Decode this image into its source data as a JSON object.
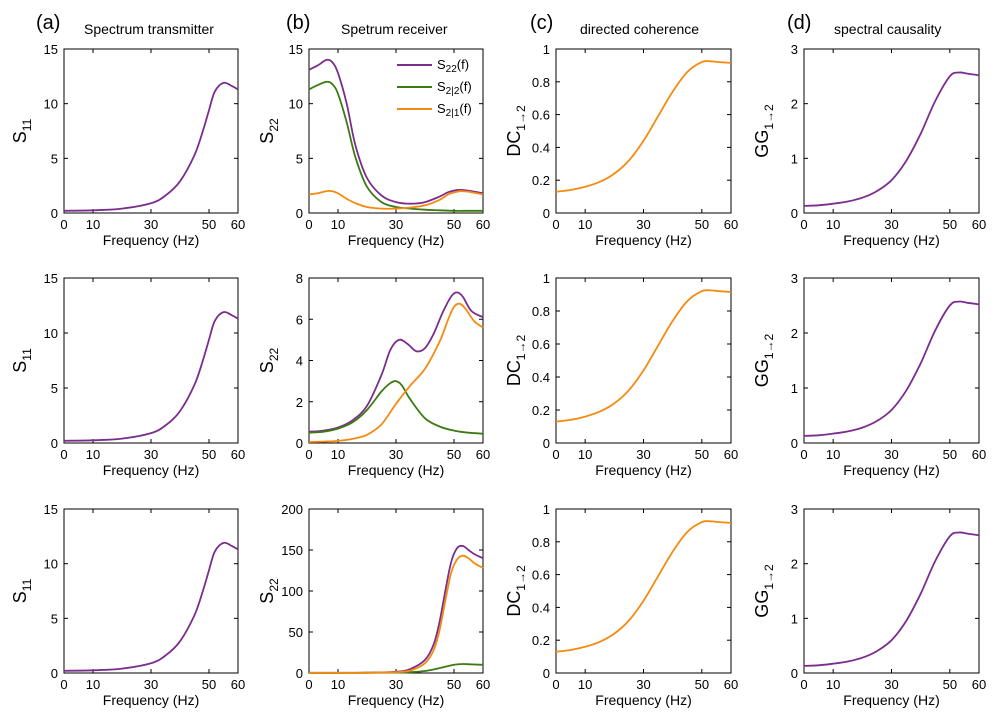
{
  "colors": {
    "purple": "#7B2D8E",
    "green": "#3D7A12",
    "orange": "#F58A0F"
  },
  "panel_letters": [
    "(a)",
    "(b)",
    "(c)",
    "(d)"
  ],
  "column_titles": [
    "Spectrum transmitter",
    "Spetrum receiver",
    "directed coherence",
    "spectral causality"
  ],
  "ylabels": {
    "a": {
      "main": "S",
      "sub": "11"
    },
    "b": {
      "main": "S",
      "sub": "22"
    },
    "c": {
      "main": "DC",
      "sub": "1→2"
    },
    "d": {
      "main": "GG",
      "sub": "1→2"
    }
  },
  "legend": [
    {
      "main": "S",
      "sub": "22",
      "tail": "(f)",
      "color": "purple"
    },
    {
      "main": "S",
      "sub": "2|2",
      "tail": "(f)",
      "color": "green"
    },
    {
      "main": "S",
      "sub": "2|1",
      "tail": "(f)",
      "color": "orange"
    }
  ],
  "chart_data": [
    {
      "id": "r1-a",
      "type": "line",
      "xlabel": "Frequency (Hz)",
      "xlim": [
        0,
        60
      ],
      "xticks": [
        0,
        10,
        30,
        50,
        60
      ],
      "ylim": [
        0,
        15
      ],
      "yticks": [
        0,
        5,
        10,
        15
      ],
      "series": [
        {
          "color": "purple",
          "x": [
            0,
            10,
            20,
            30,
            35,
            40,
            45,
            48,
            50,
            52,
            55,
            58,
            60
          ],
          "y": [
            0.2,
            0.25,
            0.4,
            0.9,
            1.6,
            2.9,
            5.3,
            7.6,
            9.4,
            11.1,
            11.9,
            11.6,
            11.3
          ]
        }
      ]
    },
    {
      "id": "r1-b",
      "type": "line",
      "xlabel": "Frequency (Hz)",
      "xlim": [
        0,
        60
      ],
      "xticks": [
        0,
        10,
        30,
        50,
        60
      ],
      "ylim": [
        0,
        15
      ],
      "yticks": [
        0,
        5,
        10,
        15
      ],
      "series": [
        {
          "color": "purple",
          "x": [
            0,
            3,
            6,
            8,
            10,
            13,
            16,
            20,
            25,
            30,
            35,
            40,
            45,
            48,
            51,
            53,
            56,
            60
          ],
          "y": [
            13.1,
            13.5,
            14.0,
            13.8,
            12.8,
            10.0,
            6.2,
            3.2,
            1.6,
            1.0,
            0.85,
            1.0,
            1.5,
            1.9,
            2.1,
            2.1,
            2.0,
            1.8
          ]
        },
        {
          "color": "green",
          "x": [
            0,
            3,
            6,
            8,
            10,
            13,
            16,
            20,
            25,
            30,
            35,
            40,
            45,
            50,
            55,
            60
          ],
          "y": [
            11.3,
            11.7,
            12.0,
            11.8,
            10.9,
            8.3,
            5.1,
            2.4,
            1.0,
            0.55,
            0.4,
            0.3,
            0.25,
            0.2,
            0.2,
            0.2
          ]
        },
        {
          "color": "orange",
          "x": [
            0,
            3,
            6,
            8,
            10,
            13,
            16,
            20,
            25,
            30,
            35,
            40,
            45,
            48,
            51,
            53,
            56,
            60
          ],
          "y": [
            1.7,
            1.8,
            2.0,
            2.0,
            1.8,
            1.3,
            0.9,
            0.55,
            0.4,
            0.4,
            0.5,
            0.7,
            1.2,
            1.7,
            1.95,
            2.0,
            1.9,
            1.7
          ]
        }
      ]
    },
    {
      "id": "r1-c",
      "type": "line",
      "xlabel": "Frequency (Hz)",
      "xlim": [
        0,
        60
      ],
      "xticks": [
        0,
        10,
        30,
        50,
        60
      ],
      "ylim": [
        0,
        1
      ],
      "yticks": [
        0,
        0.2,
        0.4,
        0.6,
        0.8,
        1
      ],
      "series": [
        {
          "color": "orange",
          "x": [
            0,
            5,
            10,
            15,
            20,
            25,
            30,
            35,
            40,
            45,
            50,
            53,
            56,
            60
          ],
          "y": [
            0.13,
            0.14,
            0.16,
            0.19,
            0.24,
            0.32,
            0.44,
            0.59,
            0.74,
            0.86,
            0.92,
            0.925,
            0.92,
            0.915
          ]
        }
      ]
    },
    {
      "id": "r1-d",
      "type": "line",
      "xlabel": "Frequency (Hz)",
      "xlim": [
        0,
        60
      ],
      "xticks": [
        0,
        10,
        30,
        50,
        60
      ],
      "ylim": [
        0,
        3
      ],
      "yticks": [
        0,
        1,
        2,
        3
      ],
      "series": [
        {
          "color": "purple",
          "x": [
            0,
            5,
            10,
            15,
            20,
            25,
            30,
            35,
            40,
            45,
            50,
            53,
            56,
            60
          ],
          "y": [
            0.13,
            0.14,
            0.17,
            0.21,
            0.28,
            0.4,
            0.6,
            0.95,
            1.45,
            2.05,
            2.5,
            2.57,
            2.55,
            2.52
          ]
        }
      ]
    },
    {
      "id": "r2-a",
      "type": "line",
      "xlabel": "Frequency (Hz)",
      "xlim": [
        0,
        60
      ],
      "xticks": [
        0,
        10,
        30,
        50,
        60
      ],
      "ylim": [
        0,
        15
      ],
      "yticks": [
        0,
        5,
        10,
        15
      ],
      "series": [
        {
          "color": "purple",
          "x": [
            0,
            10,
            20,
            30,
            35,
            40,
            45,
            48,
            50,
            52,
            55,
            58,
            60
          ],
          "y": [
            0.2,
            0.25,
            0.4,
            0.9,
            1.6,
            2.9,
            5.3,
            7.6,
            9.4,
            11.1,
            11.9,
            11.6,
            11.3
          ]
        }
      ]
    },
    {
      "id": "r2-b",
      "type": "line",
      "xlabel": "Frequency (Hz)",
      "xlim": [
        0,
        60
      ],
      "xticks": [
        0,
        10,
        30,
        50,
        60
      ],
      "ylim": [
        0,
        8
      ],
      "yticks": [
        0,
        2,
        4,
        6,
        8
      ],
      "series": [
        {
          "color": "purple",
          "x": [
            0,
            5,
            10,
            15,
            20,
            25,
            28,
            31,
            34,
            37,
            40,
            43,
            46,
            49,
            51,
            53,
            56,
            60
          ],
          "y": [
            0.55,
            0.6,
            0.75,
            1.1,
            1.8,
            3.3,
            4.5,
            5.0,
            4.8,
            4.45,
            4.6,
            5.3,
            6.3,
            7.1,
            7.3,
            7.1,
            6.4,
            6.1
          ]
        },
        {
          "color": "green",
          "x": [
            0,
            5,
            10,
            15,
            20,
            25,
            28,
            30,
            32,
            35,
            40,
            45,
            50,
            55,
            60
          ],
          "y": [
            0.5,
            0.55,
            0.7,
            1.0,
            1.6,
            2.5,
            2.9,
            3.0,
            2.8,
            2.1,
            1.2,
            0.8,
            0.6,
            0.5,
            0.45
          ]
        },
        {
          "color": "orange",
          "x": [
            0,
            5,
            10,
            15,
            20,
            25,
            30,
            35,
            40,
            45,
            48,
            50,
            52,
            54,
            57,
            60
          ],
          "y": [
            0.05,
            0.07,
            0.1,
            0.2,
            0.4,
            0.9,
            1.9,
            2.8,
            3.6,
            4.9,
            6.0,
            6.6,
            6.75,
            6.5,
            5.9,
            5.6
          ]
        }
      ]
    },
    {
      "id": "r2-c",
      "type": "line",
      "xlabel": "Frequency (Hz)",
      "xlim": [
        0,
        60
      ],
      "xticks": [
        0,
        10,
        30,
        50,
        60
      ],
      "ylim": [
        0,
        1
      ],
      "yticks": [
        0,
        0.2,
        0.4,
        0.6,
        0.8,
        1
      ],
      "series": [
        {
          "color": "orange",
          "x": [
            0,
            5,
            10,
            15,
            20,
            25,
            30,
            35,
            40,
            45,
            50,
            53,
            56,
            60
          ],
          "y": [
            0.13,
            0.14,
            0.16,
            0.19,
            0.24,
            0.32,
            0.44,
            0.59,
            0.74,
            0.86,
            0.92,
            0.925,
            0.92,
            0.915
          ]
        }
      ]
    },
    {
      "id": "r2-d",
      "type": "line",
      "xlabel": "Frequency (Hz)",
      "xlim": [
        0,
        60
      ],
      "xticks": [
        0,
        10,
        30,
        50,
        60
      ],
      "ylim": [
        0,
        3
      ],
      "yticks": [
        0,
        1,
        2,
        3
      ],
      "series": [
        {
          "color": "purple",
          "x": [
            0,
            5,
            10,
            15,
            20,
            25,
            30,
            35,
            40,
            45,
            50,
            53,
            56,
            60
          ],
          "y": [
            0.13,
            0.14,
            0.17,
            0.21,
            0.28,
            0.4,
            0.6,
            0.95,
            1.45,
            2.05,
            2.5,
            2.57,
            2.55,
            2.52
          ]
        }
      ]
    },
    {
      "id": "r3-a",
      "type": "line",
      "xlabel": "Frequency (Hz)",
      "xlim": [
        0,
        60
      ],
      "xticks": [
        0,
        10,
        30,
        50,
        60
      ],
      "ylim": [
        0,
        15
      ],
      "yticks": [
        0,
        5,
        10,
        15
      ],
      "series": [
        {
          "color": "purple",
          "x": [
            0,
            10,
            20,
            30,
            35,
            40,
            45,
            48,
            50,
            52,
            55,
            58,
            60
          ],
          "y": [
            0.2,
            0.25,
            0.4,
            0.9,
            1.6,
            2.9,
            5.3,
            7.6,
            9.4,
            11.1,
            11.9,
            11.6,
            11.3
          ]
        }
      ]
    },
    {
      "id": "r3-b",
      "type": "line",
      "xlabel": "Frequency (Hz)",
      "xlim": [
        0,
        60
      ],
      "xticks": [
        0,
        10,
        30,
        50,
        60
      ],
      "ylim": [
        0,
        200
      ],
      "yticks": [
        0,
        50,
        100,
        150,
        200
      ],
      "series": [
        {
          "color": "purple",
          "x": [
            0,
            10,
            20,
            30,
            35,
            40,
            43,
            45,
            47,
            49,
            51,
            53,
            55,
            57,
            60
          ],
          "y": [
            0.3,
            0.3,
            0.5,
            1.5,
            5,
            16,
            35,
            62,
            100,
            135,
            152,
            155,
            150,
            145,
            140
          ]
        },
        {
          "color": "green",
          "x": [
            0,
            10,
            20,
            30,
            35,
            40,
            45,
            50,
            53,
            56,
            60
          ],
          "y": [
            0.1,
            0.1,
            0.2,
            0.5,
            1.0,
            2.5,
            6,
            10,
            11,
            10.5,
            10
          ]
        },
        {
          "color": "orange",
          "x": [
            0,
            10,
            20,
            30,
            35,
            40,
            43,
            45,
            47,
            49,
            51,
            53,
            55,
            57,
            60
          ],
          "y": [
            0.1,
            0.1,
            0.3,
            1.0,
            3,
            12,
            28,
            52,
            88,
            122,
            138,
            143,
            140,
            134,
            128
          ]
        }
      ]
    },
    {
      "id": "r3-c",
      "type": "line",
      "xlabel": "Frequency (Hz)",
      "xlim": [
        0,
        60
      ],
      "xticks": [
        0,
        10,
        30,
        50,
        60
      ],
      "ylim": [
        0,
        1
      ],
      "yticks": [
        0,
        0.2,
        0.4,
        0.6,
        0.8,
        1
      ],
      "series": [
        {
          "color": "orange",
          "x": [
            0,
            5,
            10,
            15,
            20,
            25,
            30,
            35,
            40,
            45,
            50,
            53,
            56,
            60
          ],
          "y": [
            0.13,
            0.14,
            0.16,
            0.19,
            0.24,
            0.32,
            0.44,
            0.59,
            0.74,
            0.86,
            0.92,
            0.925,
            0.92,
            0.915
          ]
        }
      ]
    },
    {
      "id": "r3-d",
      "type": "line",
      "xlabel": "Frequency (Hz)",
      "xlim": [
        0,
        60
      ],
      "xticks": [
        0,
        10,
        30,
        50,
        60
      ],
      "ylim": [
        0,
        3
      ],
      "yticks": [
        0,
        1,
        2,
        3
      ],
      "series": [
        {
          "color": "purple",
          "x": [
            0,
            5,
            10,
            15,
            20,
            25,
            30,
            35,
            40,
            45,
            50,
            53,
            56,
            60
          ],
          "y": [
            0.13,
            0.14,
            0.17,
            0.21,
            0.28,
            0.4,
            0.6,
            0.95,
            1.45,
            2.05,
            2.5,
            2.57,
            2.55,
            2.52
          ]
        }
      ]
    }
  ]
}
